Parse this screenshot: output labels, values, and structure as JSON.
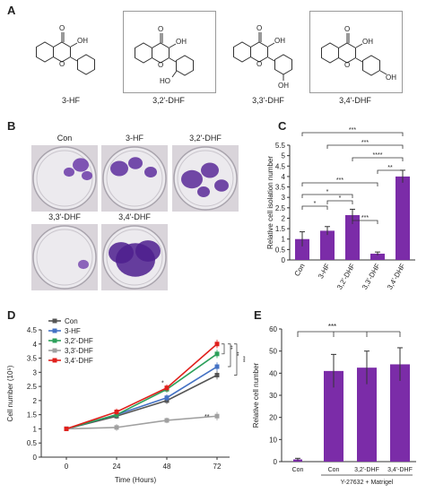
{
  "panels": {
    "a": {
      "letter": "A"
    },
    "b": {
      "letter": "B"
    },
    "c": {
      "letter": "C"
    },
    "d": {
      "letter": "D"
    },
    "e": {
      "letter": "E"
    }
  },
  "compounds": [
    {
      "name": "3-HF",
      "o_label": "O",
      "oh_label": "OH",
      "ring_o": "O",
      "extra_oh": ""
    },
    {
      "name": "3,2'-DHF",
      "o_label": "O",
      "oh_label": "OH",
      "ring_o": "O",
      "extra_oh": "HO"
    },
    {
      "name": "3,3'-DHF",
      "o_label": "O",
      "oh_label": "OH",
      "ring_o": "O",
      "extra_oh": "OH"
    },
    {
      "name": "3,4'-DHF",
      "o_label": "O",
      "oh_label": "OH",
      "ring_o": "O",
      "extra_oh": "OH"
    }
  ],
  "dishes": [
    {
      "label": "Con",
      "color": "#6b3aa8"
    },
    {
      "label": "3-HF",
      "color": "#5e2e9e"
    },
    {
      "label": "3,2'-DHF",
      "color": "#5a2a98"
    },
    {
      "label": "3,3'-DHF",
      "color": "#7a4bb0"
    },
    {
      "label": "3,4'-DHF",
      "color": "#4d1f8e"
    }
  ],
  "chart_data": [
    {
      "id": "C",
      "type": "bar",
      "categories": [
        "Con",
        "3-HF",
        "3,2'-DHF",
        "3,3'-DHF",
        "3,4'-DHF"
      ],
      "values": [
        1.0,
        1.4,
        2.15,
        0.3,
        4.0
      ],
      "errors": [
        0.35,
        0.2,
        0.28,
        0.08,
        0.3
      ],
      "ylabel": "Relative cell isolation number",
      "ylim": [
        0,
        5.5
      ],
      "yticks": [
        "0",
        "0.5",
        "1",
        "1.5",
        "2",
        "2.5",
        "3",
        "3.5",
        "4",
        "4.5",
        "5",
        "5.5"
      ],
      "bar_color": "#7b2ca8",
      "significance": [
        {
          "from": 0,
          "to": 4,
          "label": "***"
        },
        {
          "from": 1,
          "to": 4,
          "label": "***"
        },
        {
          "from": 2,
          "to": 4,
          "label": "****"
        },
        {
          "from": 3,
          "to": 4,
          "label": "**"
        },
        {
          "from": 0,
          "to": 3,
          "label": "***"
        },
        {
          "from": 0,
          "to": 2,
          "label": "*"
        },
        {
          "from": 0,
          "to": 1,
          "label": "*"
        },
        {
          "from": 1,
          "to": 2,
          "label": "*"
        },
        {
          "from": 2,
          "to": 3,
          "label": "***"
        }
      ]
    },
    {
      "id": "D",
      "type": "line",
      "x": [
        "0",
        "24",
        "48",
        "72"
      ],
      "xlabel": "Time (Hours)",
      "ylabel": "Cell number (10⁵)",
      "ylim": [
        0,
        4.5
      ],
      "yticks": [
        "0",
        "0.5",
        "1",
        "1.5",
        "2",
        "2.5",
        "3",
        "3.5",
        "4",
        "4.5"
      ],
      "series": [
        {
          "name": "Con",
          "color": "#555555",
          "values": [
            1.0,
            1.45,
            2.0,
            2.9
          ],
          "errors": [
            0.05,
            0.1,
            0.12,
            0.15
          ]
        },
        {
          "name": "3-HF",
          "color": "#4472c4",
          "values": [
            1.0,
            1.5,
            2.1,
            3.2
          ],
          "errors": [
            0.05,
            0.1,
            0.12,
            0.15
          ]
        },
        {
          "name": "3,2'-DHF",
          "color": "#2ca05a",
          "values": [
            1.0,
            1.5,
            2.4,
            3.65
          ],
          "errors": [
            0.05,
            0.1,
            0.12,
            0.15
          ]
        },
        {
          "name": "3,3'-DHF",
          "color": "#a0a0a0",
          "values": [
            1.0,
            1.05,
            1.3,
            1.45
          ],
          "errors": [
            0.05,
            0.12,
            0.1,
            0.15
          ]
        },
        {
          "name": "3,4'-DHF",
          "color": "#e0201c",
          "values": [
            1.0,
            1.6,
            2.45,
            4.0
          ],
          "errors": [
            0.05,
            0.12,
            0.12,
            0.15
          ]
        }
      ],
      "annotations": [
        "**",
        "*",
        "**",
        "**",
        "***"
      ]
    },
    {
      "id": "E",
      "type": "bar",
      "categories": [
        "Con",
        "Con",
        "3,2'-DHF",
        "3,4'-DHF"
      ],
      "values": [
        1,
        41,
        42.5,
        44
      ],
      "errors": [
        0.5,
        7.5,
        7.5,
        7.5
      ],
      "ylabel": "Relative cell number",
      "ylim": [
        0,
        60
      ],
      "yticks": [
        "0",
        "10",
        "20",
        "30",
        "40",
        "50",
        "60"
      ],
      "bar_color": "#7b2ca8",
      "bracket_label": "***",
      "group_label": "Y-27632 + Matrigel"
    }
  ]
}
